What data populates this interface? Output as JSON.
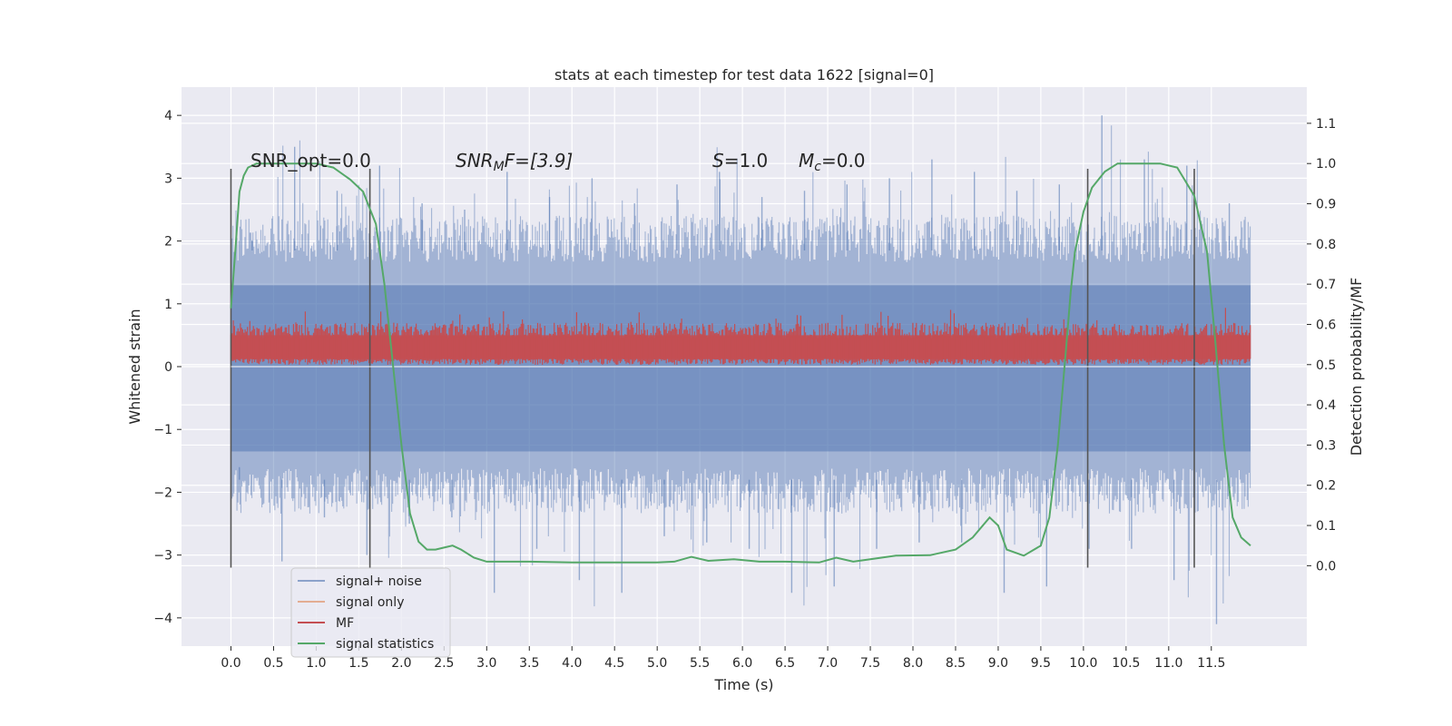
{
  "chart_data": {
    "type": "line",
    "title": "stats at each timestep for test data 1622 [signal=0]",
    "xlabel": "Time (s)",
    "ylabel_left": "Whitened strain",
    "ylabel_right": "Detection probability/MF",
    "xlim": [
      -0.58,
      12.62
    ],
    "ylim_left": [
      -4.45,
      4.45
    ],
    "ylim_right": [
      -0.2,
      1.19
    ],
    "x_ticks": [
      0.0,
      0.5,
      1.0,
      1.5,
      2.0,
      2.5,
      3.0,
      3.5,
      4.0,
      4.5,
      5.0,
      5.5,
      6.0,
      6.5,
      7.0,
      7.5,
      8.0,
      8.5,
      9.0,
      9.5,
      10.0,
      10.5,
      11.0,
      11.5
    ],
    "x_tick_labels": [
      "0.0",
      "0.5",
      "1.0",
      "1.5",
      "2.0",
      "2.5",
      "3.0",
      "3.5",
      "4.0",
      "4.5",
      "5.0",
      "5.5",
      "6.0",
      "6.5",
      "7.0",
      "7.5",
      "8.0",
      "8.5",
      "9.0",
      "9.5",
      "10.0",
      "10.5",
      "11.0",
      "11.5"
    ],
    "y_left_ticks": [
      4,
      3,
      2,
      1,
      0,
      -1,
      -2,
      -3,
      -4
    ],
    "y_left_tick_labels": [
      "4",
      "3",
      "2",
      "1",
      "0",
      "−1",
      "−2",
      "−3",
      "−4"
    ],
    "y_right_ticks": [
      1.1,
      1.0,
      0.9,
      0.8,
      0.7,
      0.6,
      0.5,
      0.4,
      0.3,
      0.2,
      0.1,
      0.0
    ],
    "y_right_tick_labels": [
      "1.1",
      "1.0",
      "0.9",
      "0.8",
      "0.7",
      "0.6",
      "0.5",
      "0.4",
      "0.3",
      "0.2",
      "0.1",
      "0.0"
    ],
    "grid": true,
    "legend_placement": "lower-left",
    "background": "#EAEAF2",
    "annotations": [
      "SNR_opt=0.0",
      "SNR",
      "M",
      "F=[3.9]",
      "S",
      "=1.0",
      "M",
      "c",
      "=0.0"
    ],
    "vertical_markers": {
      "x": [
        0.0,
        1.63,
        10.05,
        11.3
      ],
      "color": "#555555"
    },
    "noise_band": {
      "description_free": true,
      "upper_envelope": [
        2.0,
        3.5,
        2.8,
        3.2,
        2.6,
        2.5,
        3.1,
        2.7,
        3.0,
        2.6,
        2.9,
        3.1,
        2.7,
        2.8,
        2.9,
        3.0,
        3.3,
        3.1,
        2.8,
        2.9,
        4.0,
        3.3,
        3.2,
        2.6
      ],
      "lower_envelope": [
        -1.6,
        -3.1,
        -2.4,
        -3.0,
        -2.5,
        -2.4,
        -3.6,
        -2.9,
        -3.4,
        -3.6,
        -2.7,
        -2.8,
        -2.9,
        -3.6,
        -3.5,
        -2.9,
        -2.8,
        -2.8,
        -3.6,
        -3.5,
        -2.9,
        -2.9,
        -3.4,
        -4.1
      ],
      "core_upper": 1.85,
      "core_lower": -1.8,
      "x_start": 0.0,
      "x_end": 11.96
    },
    "series": [
      {
        "name": "signal+ noise",
        "color": "#4C72B0",
        "axis": "left"
      },
      {
        "name": "signal only",
        "color": "#DD8452",
        "axis": "left"
      },
      {
        "name": "MF",
        "color": "#C44E52",
        "axis": "left",
        "band_upper_typical": 0.6,
        "band_lower_typical": 0.05,
        "x_start": 0.0,
        "x_end": 11.96
      },
      {
        "name": "signal statistics",
        "color": "#55A868",
        "axis": "right",
        "x": [
          0.0,
          0.05,
          0.1,
          0.15,
          0.2,
          0.3,
          0.5,
          0.8,
          1.0,
          1.2,
          1.4,
          1.55,
          1.7,
          1.8,
          1.9,
          2.0,
          2.1,
          2.2,
          2.3,
          2.4,
          2.5,
          2.6,
          2.7,
          2.85,
          3.0,
          3.5,
          4.0,
          4.5,
          5.0,
          5.2,
          5.4,
          5.6,
          5.9,
          6.2,
          6.5,
          6.9,
          7.1,
          7.3,
          7.5,
          7.8,
          8.2,
          8.5,
          8.7,
          8.9,
          9.0,
          9.1,
          9.3,
          9.5,
          9.6,
          9.7,
          9.8,
          9.85,
          9.9,
          10.0,
          10.1,
          10.25,
          10.4,
          10.6,
          10.9,
          11.1,
          11.3,
          11.45,
          11.55,
          11.65,
          11.75,
          11.85,
          11.96
        ],
        "y": [
          0.64,
          0.78,
          0.93,
          0.97,
          0.99,
          1.0,
          1.0,
          1.0,
          1.0,
          0.99,
          0.96,
          0.93,
          0.85,
          0.7,
          0.5,
          0.3,
          0.13,
          0.06,
          0.04,
          0.04,
          0.045,
          0.05,
          0.04,
          0.02,
          0.01,
          0.01,
          0.008,
          0.008,
          0.008,
          0.01,
          0.022,
          0.012,
          0.016,
          0.01,
          0.01,
          0.008,
          0.02,
          0.01,
          0.016,
          0.025,
          0.026,
          0.04,
          0.07,
          0.12,
          0.1,
          0.04,
          0.025,
          0.05,
          0.12,
          0.3,
          0.55,
          0.68,
          0.78,
          0.88,
          0.94,
          0.98,
          1.0,
          1.0,
          1.0,
          0.99,
          0.92,
          0.78,
          0.55,
          0.3,
          0.12,
          0.07,
          0.05
        ]
      }
    ]
  }
}
